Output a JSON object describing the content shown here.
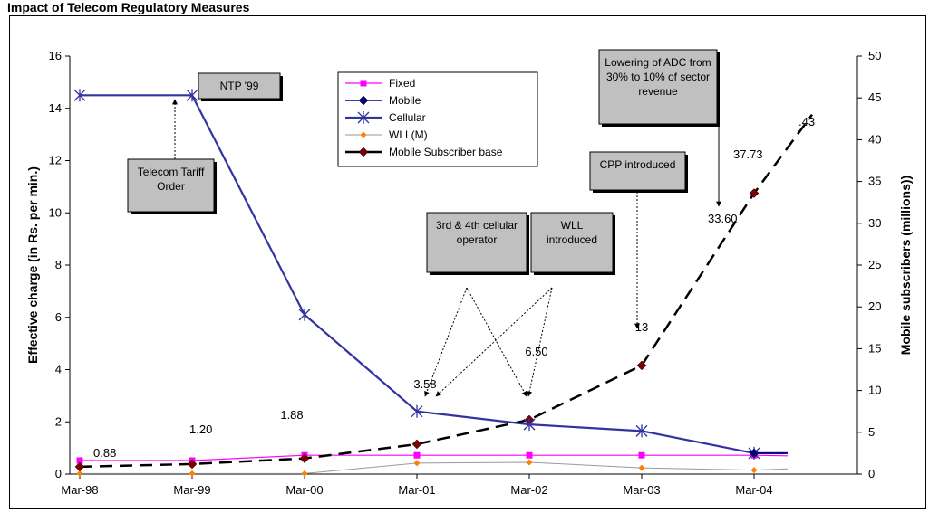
{
  "page": {
    "title": "Impact of Telecom Regulatory Measures"
  },
  "chart_data": {
    "type": "line",
    "categories": [
      "Mar-98",
      "Mar-99",
      "Mar-00",
      "Mar-01",
      "Mar-02",
      "Mar-03",
      "Mar-04"
    ],
    "ylabel": "Effective charge (in Rs. per min.)",
    "y2label": "Mobile subscribers (millions))",
    "ylim": [
      0,
      16
    ],
    "y_ticks": [
      "0",
      "2",
      "4",
      "6",
      "8",
      "10",
      "12",
      "14",
      "16"
    ],
    "y2lim": [
      0,
      50
    ],
    "y2_ticks": [
      "0",
      "5",
      "10",
      "15",
      "20",
      "25",
      "30",
      "35",
      "40",
      "45",
      "50"
    ],
    "grid": false,
    "legend_position": "top-center",
    "series": [
      {
        "name": "Fixed",
        "axis": "left",
        "color": "#ff00ff",
        "marker": "square",
        "values": [
          0.52,
          0.52,
          0.72,
          0.72,
          0.72,
          0.72,
          0.72
        ],
        "extend_to": 0.7
      },
      {
        "name": "Mobile",
        "axis": "left",
        "color": "#000080",
        "marker": "diamond",
        "values": [
          null,
          null,
          null,
          null,
          null,
          null,
          0.8
        ],
        "extend_to": 0.8
      },
      {
        "name": "Cellular",
        "axis": "left",
        "color": "#3333a0",
        "marker": "star",
        "values": [
          14.5,
          14.5,
          6.1,
          2.4,
          1.9,
          1.65,
          0.8
        ],
        "extend_to": 0.8
      },
      {
        "name": "WLL(M)",
        "axis": "left",
        "color": "#ff8000",
        "marker": "diamond-small",
        "values": [
          0.02,
          0.02,
          0.02,
          0.42,
          0.45,
          0.24,
          0.15
        ],
        "extend_to": 0.2
      },
      {
        "name": "Mobile Subscriber base",
        "axis": "right",
        "color": "#800000",
        "marker": "diamond",
        "values": [
          0.88,
          1.2,
          1.88,
          3.58,
          6.5,
          13,
          33.6
        ],
        "extend_to": 43
      }
    ],
    "data_labels": [
      "0.88",
      "1.20",
      "1.88",
      "3.58",
      "6.50",
      "13",
      "33.60",
      "37.73",
      ".43"
    ],
    "annotations": [
      {
        "id": "ntp",
        "lines": [
          "NTP '99"
        ]
      },
      {
        "id": "tariff",
        "lines": [
          "Telecom Tariff",
          "Order"
        ]
      },
      {
        "id": "cellular-op",
        "lines": [
          "3rd & 4th cellular",
          "operator"
        ]
      },
      {
        "id": "wll",
        "lines": [
          "WLL",
          "introduced"
        ]
      },
      {
        "id": "cpp",
        "lines": [
          "CPP introduced"
        ]
      },
      {
        "id": "adc",
        "lines": [
          "Lowering of ADC from",
          "30% to 10% of sector",
          "revenue"
        ]
      }
    ]
  }
}
